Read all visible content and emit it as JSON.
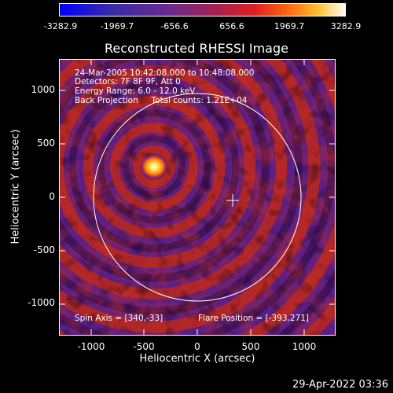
{
  "colorbar": {
    "ticks": [
      "-3282.9",
      "-1969.7",
      "-656.6",
      "656.6",
      "1969.7",
      "3282.9"
    ],
    "colors": [
      "#0000ff",
      "#5a1a8c",
      "#7d2e8f",
      "#c02020",
      "#ff4000",
      "#ff9a20",
      "#ffff60",
      "#ffffff"
    ]
  },
  "plot": {
    "title": "Reconstructed RHESSI Image",
    "xlabel": "Heliocentric X (arcsec)",
    "ylabel": "Heliocentric Y (arcsec)",
    "xticks": [
      "-1000",
      "-500",
      "0",
      "500",
      "1000"
    ],
    "yticks": [
      "1000",
      "500",
      "0",
      "-500",
      "-1000"
    ],
    "info_lines": {
      "line1": "24-Mar-2005 10:42:08.000 to 10:48:08.000",
      "line2": "Detectors: 7F 8F 9F, Att 0",
      "line3": "Energy Range: 6.0 - 12.0 keV",
      "line4": "Back Projection     Total counts: 1.21E+04"
    },
    "spin_axis": "Spin Axis = [340,-33]",
    "flare_position": "Flare Position = [-393,271]"
  },
  "chart_data": {
    "type": "heatmap",
    "title": "Reconstructed RHESSI Image",
    "xlabel": "Heliocentric X (arcsec)",
    "ylabel": "Heliocentric Y (arcsec)",
    "xlim": [
      -1280,
      1280
    ],
    "ylim": [
      -1280,
      1280
    ],
    "colorbar_range": [
      -3282.9,
      3282.9
    ],
    "solar_limb_radius": 960,
    "spin_axis": [
      340,
      -33
    ],
    "flare_position": [
      -393,
      271
    ]
  },
  "footer": {
    "timestamp": "29-Apr-2022 03:36"
  }
}
